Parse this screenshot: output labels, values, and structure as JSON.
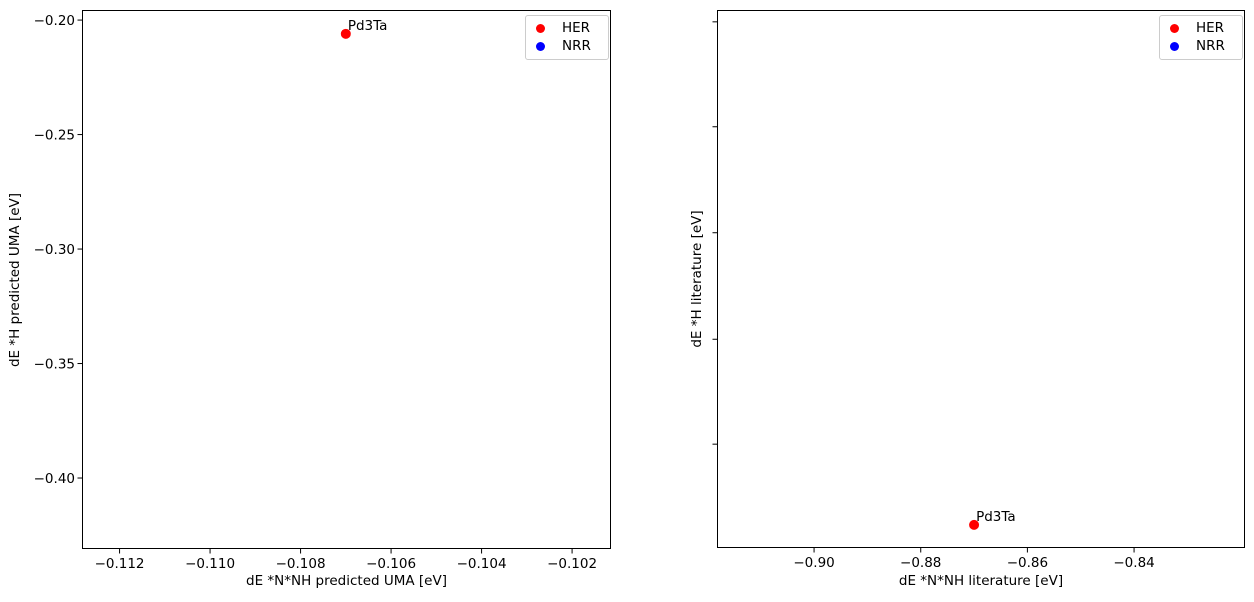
{
  "chart_data": [
    {
      "type": "scatter",
      "xlabel": "dE *N*NH predicted UMA [eV]",
      "ylabel": "dE *H predicted UMA [eV]",
      "xlim": [
        -0.11283,
        -0.10114
      ],
      "ylim": [
        -0.431,
        -0.1956
      ],
      "xticks": [
        -0.112,
        -0.11,
        -0.108,
        -0.106,
        -0.104,
        -0.102
      ],
      "xtick_labels": [
        "−0.112",
        "−0.110",
        "−0.108",
        "−0.106",
        "−0.104",
        "−0.102"
      ],
      "yticks": [
        -0.2,
        -0.25,
        -0.3,
        -0.35,
        -0.4
      ],
      "ytick_labels": [
        "−0.20",
        "−0.25",
        "−0.30",
        "−0.35",
        "−0.40"
      ],
      "grid": false,
      "legend": {
        "position": "upper right",
        "items": [
          {
            "label": "HER",
            "color": "#ff0000"
          },
          {
            "label": "NRR",
            "color": "#0000ff"
          }
        ]
      },
      "series": [
        {
          "name": "HER",
          "color": "#ff0000",
          "points": [
            {
              "label": "Pd3Ta",
              "x": -0.107,
              "y": -0.206
            }
          ]
        },
        {
          "name": "NRR",
          "color": "#0000ff",
          "points": []
        }
      ]
    },
    {
      "type": "scatter",
      "xlabel": "dE *N*NH literature [eV]",
      "ylabel": "dE *H literature [eV]",
      "xlim": [
        -0.9182,
        -0.8192
      ],
      "ylim": [
        0,
        1
      ],
      "y_axis_numeric_labels_visible": false,
      "xticks": [
        -0.9,
        -0.88,
        -0.86,
        -0.84
      ],
      "xtick_labels": [
        "−0.90",
        "−0.88",
        "−0.86",
        "−0.84"
      ],
      "yticks": [
        0.978,
        0.783,
        0.586,
        0.388,
        0.193
      ],
      "ytick_labels": [
        "",
        "",
        "",
        "",
        ""
      ],
      "grid": false,
      "legend": {
        "position": "upper right",
        "items": [
          {
            "label": "HER",
            "color": "#ff0000"
          },
          {
            "label": "NRR",
            "color": "#0000ff"
          }
        ]
      },
      "series": [
        {
          "name": "HER",
          "color": "#ff0000",
          "points": [
            {
              "label": "Pd3Ta",
              "x": -0.87,
              "y": 0.043
            }
          ]
        },
        {
          "name": "NRR",
          "color": "#0000ff",
          "points": []
        }
      ]
    }
  ]
}
